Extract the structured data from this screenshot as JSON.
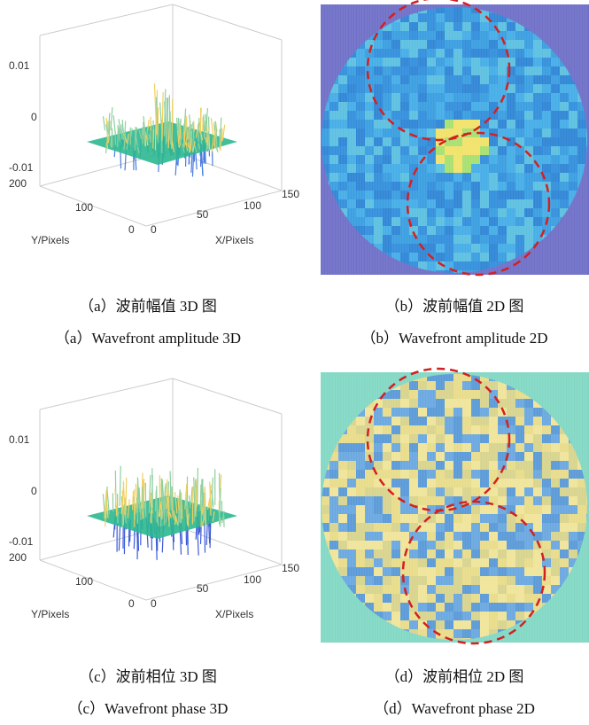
{
  "panels": [
    {
      "caption_cn": "（a）波前幅值 3D 图",
      "caption_en": "（a）Wavefront amplitude 3D",
      "z_ticks": [
        "0.01",
        "0",
        "-0.01"
      ],
      "y_ticks": [
        "200",
        "100",
        "0"
      ],
      "x_ticks": [
        "0",
        "50",
        "100",
        "150"
      ],
      "x_label": "X/Pixels",
      "y_label": "Y/Pixels"
    },
    {
      "caption_cn": "（b）波前幅值 2D 图",
      "caption_en": "（b）Wavefront amplitude 2D"
    },
    {
      "caption_cn": "（c）波前相位 3D 图",
      "caption_en": "（c）Wavefront phase 3D",
      "z_ticks": [
        "0.01",
        "0",
        "-0.01"
      ],
      "y_ticks": [
        "200",
        "100",
        "0"
      ],
      "x_ticks": [
        "0",
        "50",
        "100",
        "150"
      ],
      "x_label": "X/Pixels",
      "y_label": "Y/Pixels"
    },
    {
      "caption_cn": "（d）波前相位 2D 图",
      "caption_en": "（d）Wavefront phase 2D"
    }
  ]
}
